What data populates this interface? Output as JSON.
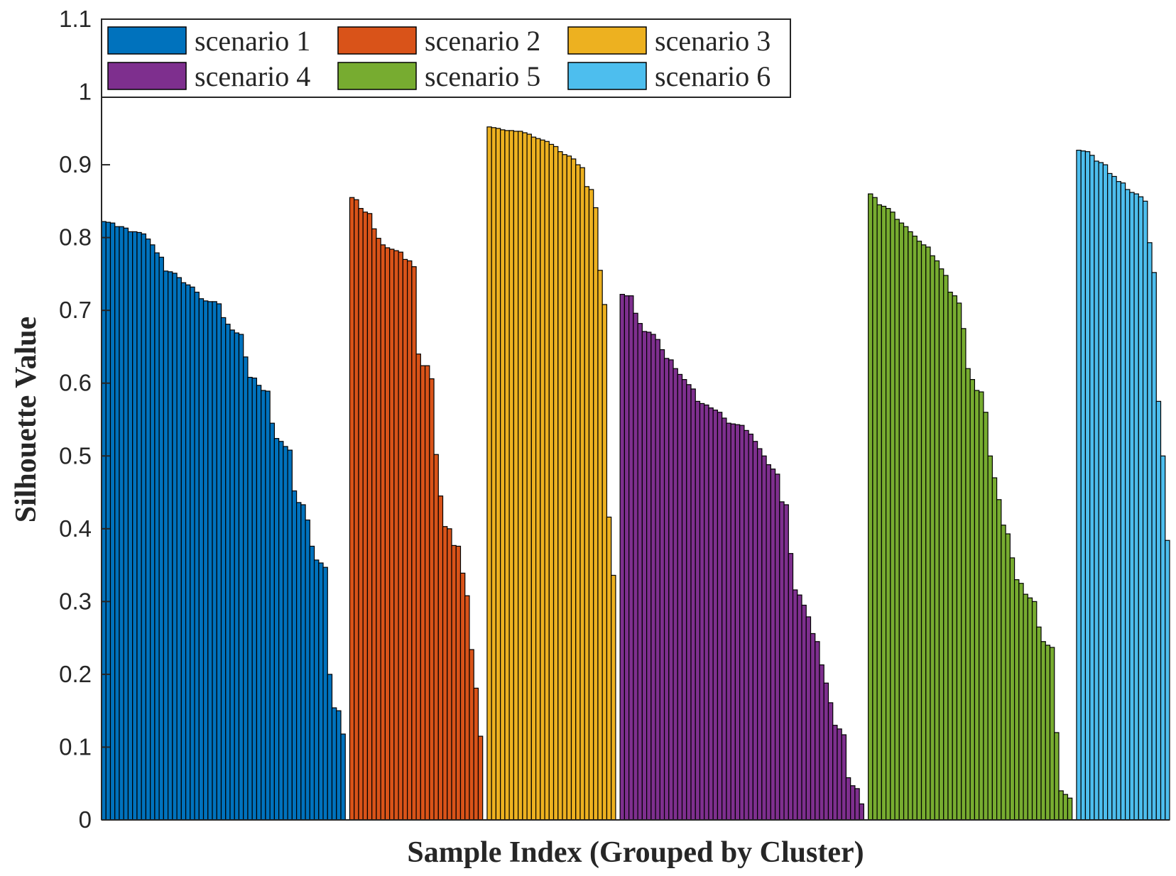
{
  "chart_data": {
    "type": "bar",
    "title": "",
    "xlabel": "Sample Index (Grouped by Cluster)",
    "ylabel": "Silhouette Value",
    "ylim": [
      0,
      1.1
    ],
    "yticks": [
      "0",
      "0.1",
      "0.2",
      "0.3",
      "0.4",
      "0.5",
      "0.6",
      "0.7",
      "0.8",
      "0.9",
      "1",
      "1.1"
    ],
    "grid": false,
    "legend_position": "top-left",
    "series": [
      {
        "name": "scenario 1",
        "color": "#0072BD",
        "values": [
          0.822,
          0.821,
          0.82,
          0.815,
          0.815,
          0.813,
          0.808,
          0.808,
          0.807,
          0.805,
          0.798,
          0.79,
          0.779,
          0.773,
          0.754,
          0.753,
          0.751,
          0.745,
          0.738,
          0.735,
          0.732,
          0.725,
          0.716,
          0.713,
          0.712,
          0.712,
          0.709,
          0.69,
          0.681,
          0.673,
          0.669,
          0.667,
          0.636,
          0.608,
          0.607,
          0.597,
          0.59,
          0.589,
          0.545,
          0.524,
          0.52,
          0.513,
          0.508,
          0.452,
          0.436,
          0.433,
          0.412,
          0.376,
          0.357,
          0.353,
          0.347,
          0.2,
          0.154,
          0.15,
          0.118
        ]
      },
      {
        "name": "scenario 2",
        "color": "#D95319",
        "values": [
          0.855,
          0.852,
          0.84,
          0.835,
          0.833,
          0.812,
          0.799,
          0.79,
          0.786,
          0.784,
          0.782,
          0.78,
          0.77,
          0.768,
          0.76,
          0.64,
          0.624,
          0.624,
          0.606,
          0.502,
          0.445,
          0.403,
          0.4,
          0.377,
          0.376,
          0.339,
          0.308,
          0.234,
          0.181,
          0.115
        ]
      },
      {
        "name": "scenario 3",
        "color": "#EDB120",
        "values": [
          0.952,
          0.951,
          0.95,
          0.948,
          0.947,
          0.947,
          0.946,
          0.946,
          0.944,
          0.942,
          0.938,
          0.936,
          0.934,
          0.932,
          0.928,
          0.925,
          0.918,
          0.914,
          0.912,
          0.908,
          0.9,
          0.896,
          0.87,
          0.866,
          0.841,
          0.755,
          0.708,
          0.416,
          0.336
        ]
      },
      {
        "name": "scenario 4",
        "color": "#7E2F8E",
        "values": [
          0.722,
          0.72,
          0.72,
          0.696,
          0.682,
          0.671,
          0.67,
          0.667,
          0.66,
          0.646,
          0.634,
          0.632,
          0.62,
          0.612,
          0.605,
          0.598,
          0.592,
          0.575,
          0.572,
          0.57,
          0.566,
          0.563,
          0.56,
          0.552,
          0.545,
          0.544,
          0.543,
          0.542,
          0.535,
          0.53,
          0.52,
          0.51,
          0.5,
          0.488,
          0.482,
          0.475,
          0.437,
          0.433,
          0.366,
          0.316,
          0.309,
          0.295,
          0.279,
          0.256,
          0.245,
          0.213,
          0.188,
          0.161,
          0.13,
          0.125,
          0.117,
          0.058,
          0.047,
          0.043,
          0.022
        ]
      },
      {
        "name": "scenario 5",
        "color": "#77AC30",
        "values": [
          0.86,
          0.855,
          0.845,
          0.843,
          0.84,
          0.835,
          0.825,
          0.82,
          0.815,
          0.808,
          0.802,
          0.795,
          0.79,
          0.787,
          0.775,
          0.768,
          0.757,
          0.748,
          0.725,
          0.72,
          0.71,
          0.675,
          0.62,
          0.605,
          0.59,
          0.588,
          0.56,
          0.5,
          0.47,
          0.44,
          0.405,
          0.393,
          0.36,
          0.33,
          0.325,
          0.31,
          0.305,
          0.3,
          0.265,
          0.245,
          0.24,
          0.237,
          0.12,
          0.04,
          0.035,
          0.03
        ]
      },
      {
        "name": "scenario 6",
        "color": "#4DBEEE",
        "values": [
          0.92,
          0.919,
          0.918,
          0.913,
          0.905,
          0.903,
          0.9,
          0.888,
          0.884,
          0.877,
          0.875,
          0.866,
          0.862,
          0.86,
          0.856,
          0.85,
          0.793,
          0.752,
          0.575,
          0.5,
          0.384
        ]
      }
    ]
  }
}
